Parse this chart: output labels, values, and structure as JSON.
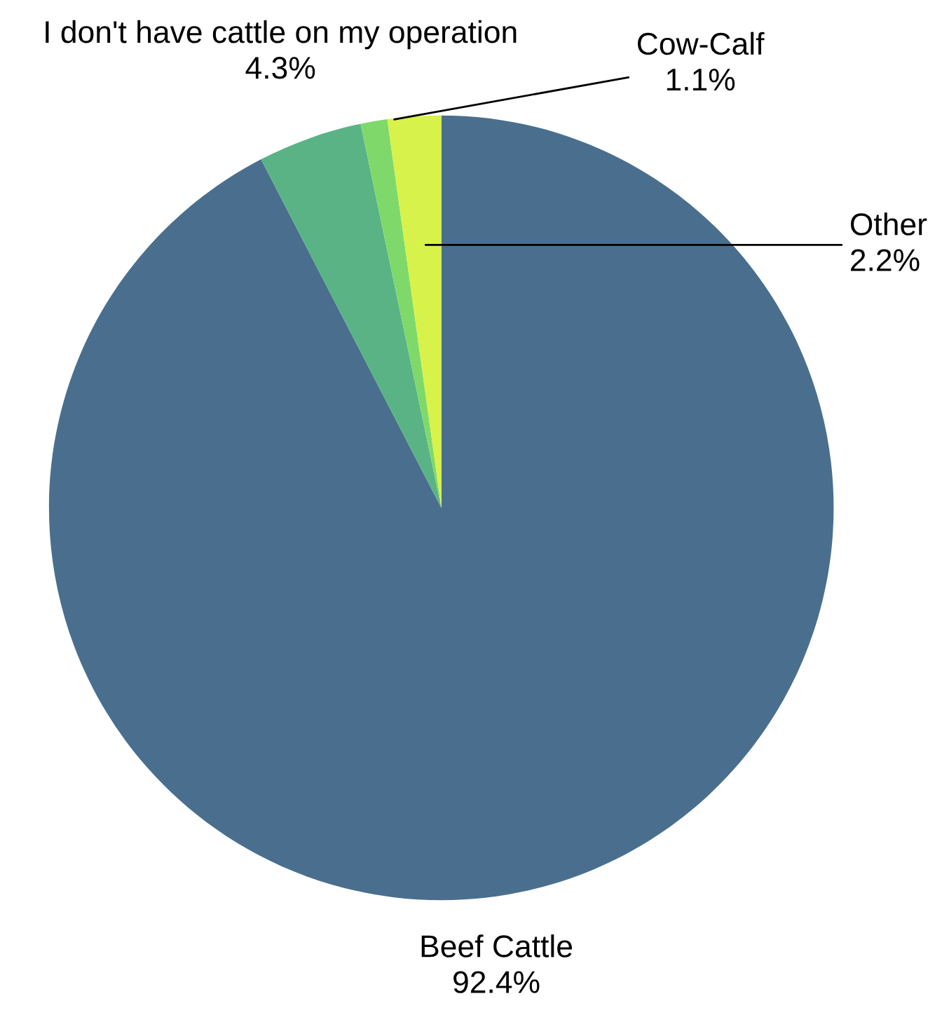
{
  "chart_data": {
    "type": "pie",
    "categories": [
      "Beef Cattle",
      "I don't have cattle on my operation",
      "Cow-Calf",
      "Other"
    ],
    "values": [
      92.4,
      4.3,
      1.1,
      2.2
    ],
    "value_labels": [
      "92.4%",
      "4.3%",
      "1.1%",
      "2.2%"
    ],
    "colors": [
      "#4a6f8e",
      "#5ab385",
      "#7ed96a",
      "#d7f24a"
    ],
    "legend": false
  }
}
